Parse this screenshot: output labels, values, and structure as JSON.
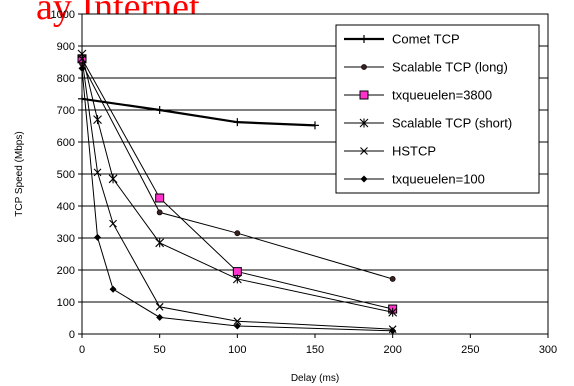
{
  "headline": "ay Internet",
  "colors": {
    "headline": "#ff0000",
    "series": "#000000",
    "square_marker": "#ff33cc"
  },
  "chart_data": {
    "type": "line",
    "xlabel": "Delay (ms)",
    "ylabel": "TCP Speed (Mbps)",
    "xlim": [
      0,
      300
    ],
    "ylim": [
      0,
      1000
    ],
    "xticks": [
      "0",
      "50",
      "100",
      "150",
      "200",
      "250",
      "300"
    ],
    "yticks": [
      "0",
      "100",
      "200",
      "300",
      "400",
      "500",
      "600",
      "700",
      "800",
      "900",
      "1000"
    ],
    "grid": "horizontal",
    "legend": "top-right",
    "series": [
      {
        "name": "Comet TCP",
        "marker": "plus",
        "bold": true,
        "x": [
          0,
          50,
          100,
          150
        ],
        "y": [
          735,
          700,
          662,
          652
        ]
      },
      {
        "name": "Scalable TCP (long)",
        "marker": "dot",
        "x": [
          0,
          50,
          100,
          200
        ],
        "y": [
          845,
          380,
          315,
          172
        ]
      },
      {
        "name": "txqueuelen=3800",
        "marker": "square",
        "x": [
          0,
          50,
          100,
          200
        ],
        "y": [
          860,
          425,
          195,
          78
        ]
      },
      {
        "name": "Scalable TCP (short)",
        "marker": "star",
        "x": [
          0,
          10,
          20,
          50,
          100,
          200
        ],
        "y": [
          875,
          670,
          485,
          285,
          172,
          68
        ]
      },
      {
        "name": "HSTCP",
        "marker": "x",
        "x": [
          0,
          10,
          20,
          50,
          100,
          200
        ],
        "y": [
          860,
          505,
          345,
          85,
          40,
          15
        ]
      },
      {
        "name": "txqueuelen=100",
        "marker": "diamond",
        "x": [
          0,
          10,
          20,
          50,
          100,
          200
        ],
        "y": [
          830,
          302,
          140,
          52,
          25,
          10
        ]
      }
    ]
  }
}
